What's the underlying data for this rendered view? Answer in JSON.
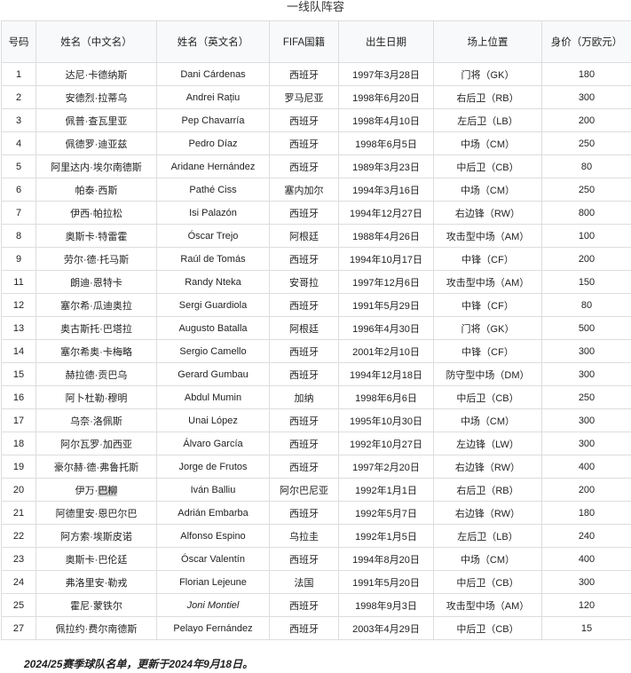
{
  "caption": "一线队阵容",
  "columns": [
    "号码",
    "姓名（中文名）",
    "姓名（英文名）",
    "FIFA国籍",
    "出生日期",
    "场上位置",
    "身价（万欧元）"
  ],
  "rows": [
    [
      "1",
      "达尼·卡德纳斯",
      "Dani Cárdenas",
      "西班牙",
      "1997年3月28日",
      "门将（GK）",
      "180"
    ],
    [
      "2",
      "安德烈·拉蒂乌",
      "Andrei Rațiu",
      "罗马尼亚",
      "1998年6月20日",
      "右后卫（RB）",
      "300"
    ],
    [
      "3",
      "佩普·查瓦里亚",
      "Pep Chavarría",
      "西班牙",
      "1998年4月10日",
      "左后卫（LB）",
      "200"
    ],
    [
      "4",
      "佩德罗·迪亚兹",
      "Pedro Díaz",
      "西班牙",
      "1998年6月5日",
      "中场（CM）",
      "250"
    ],
    [
      "5",
      "阿里达内·埃尔南德斯",
      "Aridane Hernández",
      "西班牙",
      "1989年3月23日",
      "中后卫（CB）",
      "80"
    ],
    [
      "6",
      "帕泰·西斯",
      "Pathé Ciss",
      "塞内加尔",
      "1994年3月16日",
      "中场（CM）",
      "250"
    ],
    [
      "7",
      "伊西·帕拉松",
      "Isi Palazón",
      "西班牙",
      "1994年12月27日",
      "右边锋（RW）",
      "800"
    ],
    [
      "8",
      "奥斯卡·特雷霍",
      "Óscar Trejo",
      "阿根廷",
      "1988年4月26日",
      "攻击型中场（AM）",
      "100"
    ],
    [
      "9",
      "劳尔·德·托马斯",
      "Raúl de Tomás",
      "西班牙",
      "1994年10月17日",
      "中锋（CF）",
      "200"
    ],
    [
      "11",
      "朗迪·恩特卡",
      "Randy Nteka",
      "安哥拉",
      "1997年12月6日",
      "攻击型中场（AM）",
      "150"
    ],
    [
      "12",
      "塞尔希·瓜迪奥拉",
      "Sergi Guardiola",
      "西班牙",
      "1991年5月29日",
      "中锋（CF）",
      "80"
    ],
    [
      "13",
      "奥古斯托·巴塔拉",
      "Augusto Batalla",
      "阿根廷",
      "1996年4月30日",
      "门将（GK）",
      "500"
    ],
    [
      "14",
      "塞尔希奥·卡梅略",
      "Sergio Camello",
      "西班牙",
      "2001年2月10日",
      "中锋（CF）",
      "300"
    ],
    [
      "15",
      "赫拉德·贡巴乌",
      "Gerard Gumbau",
      "西班牙",
      "1994年12月18日",
      "防守型中场（DM）",
      "300"
    ],
    [
      "16",
      "阿卜杜勒·穆明",
      "Abdul Mumin",
      "加纳",
      "1998年6月6日",
      "中后卫（CB）",
      "250"
    ],
    [
      "17",
      "乌奈·洛佩斯",
      "Unai López",
      "西班牙",
      "1995年10月30日",
      "中场（CM）",
      "300"
    ],
    [
      "18",
      "阿尔瓦罗·加西亚",
      "Álvaro García",
      "西班牙",
      "1992年10月27日",
      "左边锋（LW）",
      "300"
    ],
    [
      "19",
      "豪尔赫·德·弗鲁托斯",
      "Jorge de Frutos",
      "西班牙",
      "1997年2月20日",
      "右边锋（RW）",
      "400"
    ],
    [
      "20",
      "伊万·巴柳",
      "Iván Balliu",
      "阿尔巴尼亚",
      "1992年1月1日",
      "右后卫（RB）",
      "200"
    ],
    [
      "21",
      "阿德里安·恩巴尔巴",
      "Adrián Embarba",
      "西班牙",
      "1992年5月7日",
      "右边锋（RW）",
      "180"
    ],
    [
      "22",
      "阿方索·埃斯皮诺",
      "Alfonso Espino",
      "乌拉圭",
      "1992年1月5日",
      "左后卫（LB）",
      "240"
    ],
    [
      "23",
      "奥斯卡·巴伦廷",
      "Óscar Valentín",
      "西班牙",
      "1994年8月20日",
      "中场（CM）",
      "400"
    ],
    [
      "24",
      "弗洛里安·勒戎",
      "Florian Lejeune",
      "法国",
      "1991年5月20日",
      "中后卫（CB）",
      "300"
    ],
    [
      "25",
      "霍尼·蒙铁尔",
      "Joni Montiel",
      "西班牙",
      "1998年9月3日",
      "攻击型中场（AM）",
      "120"
    ],
    [
      "27",
      "佩拉约·费尔南德斯",
      "Pelayo Fernández",
      "西班牙",
      "2003年4月29日",
      "中后卫（CB）",
      "15"
    ]
  ],
  "footnote": "2024/25赛季球队名单，更新于2024年9月18日。"
}
